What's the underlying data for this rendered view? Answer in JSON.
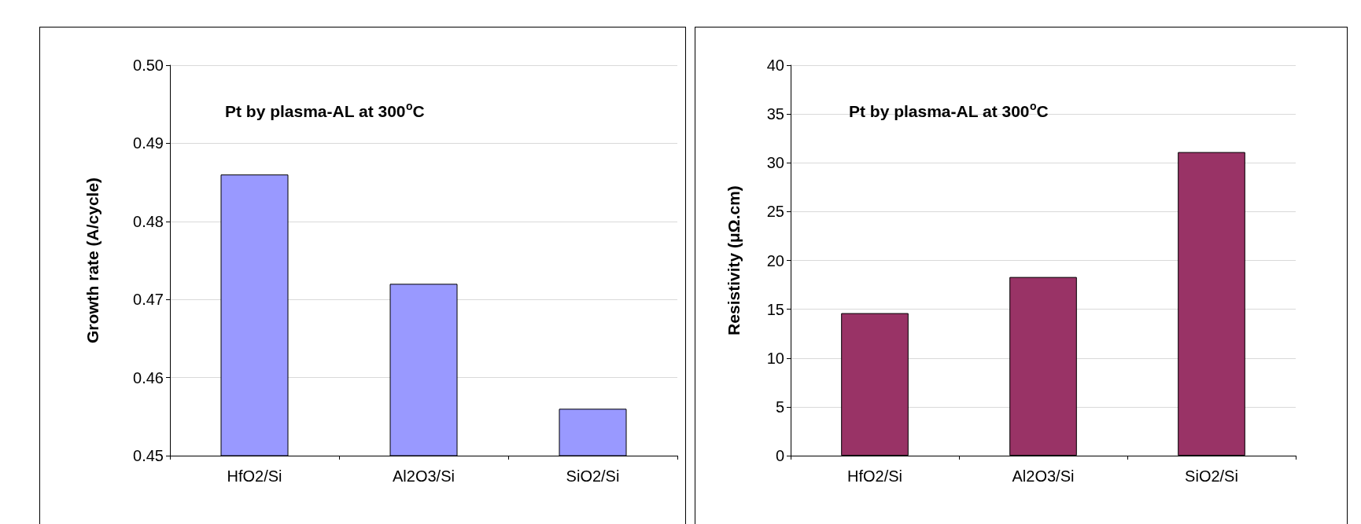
{
  "chart_data": [
    {
      "type": "bar",
      "title": "Pt by plasma-AL at 300$^{o}$C",
      "ylabel": "Growth rate (A/cycle)",
      "categories": [
        "HfO2/Si",
        "Al2O3/Si",
        "SiO2/Si"
      ],
      "series": [
        {
          "color": "#9999ff",
          "values": [
            0.486,
            0.472,
            0.456
          ]
        }
      ],
      "ylim": [
        0.45,
        0.5
      ],
      "yticks": [
        0.45,
        0.46,
        0.47,
        0.48,
        0.49,
        {
          "value": 0.5,
          "label": "0.50"
        }
      ],
      "grid": "y"
    },
    {
      "type": "bar",
      "title": "Pt by plasma-AL at 300$^{o}$C",
      "ylabel": "Resistivity (μΩ.cm)",
      "categories": [
        "HfO2/Si",
        "Al2O3/Si",
        "SiO2/Si"
      ],
      "series": [
        {
          "color": "#993366",
          "values": [
            14.6,
            18.3,
            31.1
          ]
        }
      ],
      "ylim": [
        0,
        40
      ],
      "yticks": [
        0,
        5,
        10,
        15,
        20,
        25,
        30,
        35,
        40
      ],
      "grid": "y"
    }
  ]
}
